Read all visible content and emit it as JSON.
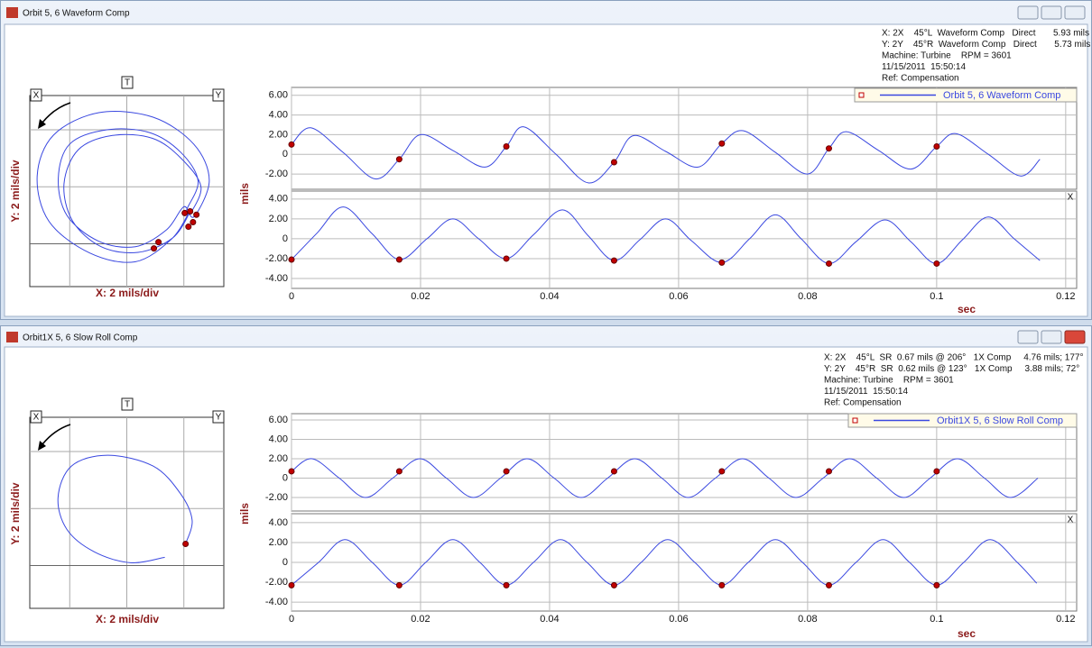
{
  "windows": [
    {
      "title": "Orbit 5, 6 Waveform Comp",
      "info": [
        "X: 2X    45°L  Waveform Comp   Direct       5.93 mils",
        "Y: 2Y    45°R  Waveform Comp   Direct       5.73 mils",
        "Machine: Turbine    RPM = 3601",
        "11/15/2011  15:50:14",
        "Ref: Compensation"
      ],
      "orbit": {
        "type": "orbit",
        "corner_labels": [
          "X",
          "T",
          "Y"
        ],
        "xlabel": "X: 2 mils/div",
        "ylabel": "Y: 2 mils/div",
        "xlim": [
          -3.4,
          3.4
        ],
        "ylim": [
          -3.5,
          3.2
        ],
        "xticks": [
          -2,
          0,
          2
        ],
        "yticks": [
          -2,
          0,
          2
        ],
        "color": "#3a48e0",
        "x": [
          2.19,
          1.56,
          0.29,
          -1.3,
          -2.73,
          -3.14,
          -2.57,
          -0.98,
          0.92,
          2.35,
          2.89,
          2.35,
          2.0,
          1.4,
          0.3,
          -1.0,
          -2.1,
          -2.4,
          -2.0,
          -0.7,
          0.8,
          1.9,
          2.5,
          2.1,
          2.2,
          1.6,
          0.4,
          -0.9,
          -1.9,
          -2.2,
          -1.7,
          -0.5,
          0.9,
          1.9,
          2.6,
          2.2
        ],
        "y": [
          -0.89,
          -1.84,
          -2.63,
          -2.32,
          -1.21,
          0.38,
          1.81,
          2.6,
          2.44,
          1.49,
          0.22,
          -1.05,
          -0.7,
          -1.5,
          -2.1,
          -1.9,
          -1.0,
          0.3,
          1.5,
          2.0,
          1.9,
          1.2,
          0.2,
          -0.8,
          -0.9,
          -1.8,
          -2.3,
          -2.1,
          -1.2,
          0.1,
          1.3,
          1.8,
          1.7,
          1.0,
          0.0,
          -1.0
        ],
        "marker_x": [
          2.03,
          2.22,
          2.44,
          2.32,
          2.16,
          1.11,
          0.95
        ],
        "marker_y": [
          -0.92,
          -0.86,
          -0.98,
          -1.24,
          -1.4,
          -1.94,
          -2.16
        ],
        "marker_color": "#c00000"
      },
      "waveform": {
        "type": "line",
        "xlabel": "sec",
        "ylabel": "mils",
        "legend": "Orbit 5, 6 Waveform Comp",
        "color": "#3a48e0",
        "marker_color": "#c00000",
        "xlim": [
          0,
          0.1217
        ],
        "xticks": [
          0,
          0.02,
          0.04,
          0.06,
          0.08,
          0.1,
          0.12
        ],
        "panels": [
          {
            "ylim": [
              -3.55,
              6.8
            ],
            "yticks": [
              {
                "value": 6,
                "label": "6.00"
              },
              {
                "value": 4,
                "label": "4.00"
              },
              {
                "value": 2,
                "label": "2.00"
              },
              0,
              {
                "value": -2,
                "label": "-2.00"
              }
            ],
            "x": [
              0,
              0.003,
              0.008,
              0.013,
              0.0167,
              0.02,
              0.025,
              0.03,
              0.0333,
              0.036,
              0.041,
              0.046,
              0.05,
              0.053,
              0.058,
              0.063,
              0.0667,
              0.07,
              0.075,
              0.08,
              0.0833,
              0.086,
              0.091,
              0.096,
              0.1,
              0.103,
              0.108,
              0.113,
              0.116
            ],
            "values": [
              1.0,
              2.7,
              0.2,
              -2.5,
              -0.5,
              2.0,
              0.4,
              -1.3,
              0.8,
              2.8,
              0.0,
              -2.9,
              -0.8,
              1.9,
              0.3,
              -1.3,
              1.1,
              2.4,
              0.2,
              -2.0,
              0.6,
              2.3,
              0.4,
              -1.5,
              0.8,
              2.1,
              0.0,
              -2.2,
              -0.5
            ],
            "marker_x": [
              0,
              0.0167,
              0.0333,
              0.05,
              0.0667,
              0.0833,
              0.1
            ],
            "marker_values": [
              1.0,
              -0.5,
              0.8,
              -0.8,
              1.1,
              0.6,
              0.8
            ]
          },
          {
            "tag": "X",
            "ylim": [
              -5,
              4.8
            ],
            "yticks": [
              {
                "value": 4,
                "label": "4.00"
              },
              {
                "value": 2,
                "label": "2.00"
              },
              0,
              {
                "value": -2,
                "label": "-2.00"
              },
              {
                "value": -4,
                "label": "-4.00"
              }
            ],
            "x": [
              0,
              0.004,
              0.008,
              0.0125,
              0.0167,
              0.021,
              0.025,
              0.029,
              0.0333,
              0.0375,
              0.042,
              0.046,
              0.05,
              0.054,
              0.058,
              0.062,
              0.0667,
              0.071,
              0.075,
              0.079,
              0.0833,
              0.0875,
              0.092,
              0.096,
              0.1,
              0.104,
              0.108,
              0.112,
              0.116
            ],
            "values": [
              -2.1,
              0.6,
              3.2,
              0.5,
              -2.1,
              0,
              2.0,
              0,
              -2.0,
              0.4,
              2.9,
              0.3,
              -2.2,
              -0.1,
              2.0,
              -0.2,
              -2.4,
              0,
              2.4,
              0,
              -2.5,
              -0.3,
              1.9,
              -0.3,
              -2.5,
              -0.1,
              2.2,
              0,
              -2.2
            ],
            "marker_x": [
              0,
              0.0167,
              0.0333,
              0.05,
              0.0667,
              0.0833,
              0.1
            ],
            "marker_values": [
              -2.1,
              -2.1,
              -2.0,
              -2.2,
              -2.4,
              -2.5,
              -2.5
            ]
          }
        ]
      }
    },
    {
      "title": "Orbit1X 5, 6 Slow Roll Comp",
      "info": [
        "X: 2X    45°L  SR  0.67 mils @ 206°   1X Comp     4.76 mils; 177°",
        "Y: 2Y    45°R  SR  0.62 mils @ 123°   1X Comp     3.88 mils; 72°",
        "Machine: Turbine    RPM = 3601",
        "11/15/2011  15:50:14",
        "Ref: Compensation"
      ],
      "orbit": {
        "type": "orbit",
        "corner_labels": [
          "X",
          "T",
          "Y"
        ],
        "xlabel": "X: 2 mils/div",
        "ylabel": "Y: 2 mils/div",
        "xlim": [
          -3.4,
          3.4
        ],
        "ylim": [
          -3.5,
          3.2
        ],
        "xticks": [
          -2,
          0,
          2
        ],
        "yticks": [
          -2,
          0,
          2
        ],
        "color": "#3a48e0",
        "x": [
          2.06,
          2.29,
          1.87,
          0.92,
          -0.67,
          -1.94,
          -2.41,
          -2.1,
          -1.14,
          0.13,
          1.33
        ],
        "y": [
          -1.24,
          -0.41,
          0.54,
          1.49,
          1.87,
          1.49,
          0.38,
          -0.73,
          -1.52,
          -1.9,
          -1.71
        ],
        "marker_x": [
          2.06
        ],
        "marker_y": [
          -1.24
        ],
        "marker_color": "#c00000"
      },
      "waveform": {
        "type": "line",
        "xlabel": "sec",
        "ylabel": "mils",
        "legend": "Orbit1X 5, 6 Slow Roll Comp",
        "color": "#3a48e0",
        "marker_color": "#c00000",
        "xlim": [
          0,
          0.1217
        ],
        "xticks": [
          0,
          0.02,
          0.04,
          0.06,
          0.08,
          0.1,
          0.12
        ],
        "panels": [
          {
            "ylim": [
              -3.4,
              6.65
            ],
            "yticks": [
              {
                "value": 6,
                "label": "6.00"
              },
              {
                "value": 4,
                "label": "4.00"
              },
              {
                "value": 2,
                "label": "2.00"
              },
              0,
              {
                "value": -2,
                "label": "-2.00"
              }
            ],
            "x": [
              0,
              0.0032,
              0.0074,
              0.0115,
              0.0157,
              0.0199,
              0.024,
              0.0282,
              0.0324,
              0.0365,
              0.0407,
              0.0449,
              0.049,
              0.0532,
              0.0574,
              0.0615,
              0.0657,
              0.0699,
              0.074,
              0.0782,
              0.0824,
              0.0865,
              0.0907,
              0.0949,
              0.099,
              0.1032,
              0.1074,
              0.1115,
              0.1157
            ],
            "values": [
              0.7,
              2,
              0,
              -2,
              0,
              2,
              0,
              -2,
              0,
              2,
              0,
              -2,
              0,
              2,
              0,
              -2,
              0,
              2,
              0,
              -2,
              0,
              2,
              0,
              -2,
              0,
              2,
              0,
              -2,
              0
            ],
            "marker_x": [
              0,
              0.0167,
              0.0333,
              0.05,
              0.0667,
              0.0833,
              0.1
            ],
            "marker_values": [
              0.7,
              0.7,
              0.7,
              0.7,
              0.7,
              0.7,
              0.7
            ]
          },
          {
            "tag": "X",
            "ylim": [
              -4.9,
              4.9
            ],
            "yticks": [
              {
                "value": 4,
                "label": "4.00"
              },
              {
                "value": 2,
                "label": "2.00"
              },
              0,
              {
                "value": -2,
                "label": "-2.00"
              },
              {
                "value": -4,
                "label": "-4.00"
              }
            ],
            "x": [
              0,
              0.0042,
              0.0083,
              0.0125,
              0.0167,
              0.0208,
              0.025,
              0.0292,
              0.0333,
              0.0375,
              0.0417,
              0.0458,
              0.05,
              0.0542,
              0.0583,
              0.0625,
              0.0667,
              0.0708,
              0.075,
              0.0792,
              0.0833,
              0.0875,
              0.0917,
              0.0958,
              0.1,
              0.1042,
              0.1083,
              0.1125,
              0.1155
            ],
            "values": [
              -2.3,
              0,
              2.3,
              0,
              -2.3,
              0,
              2.3,
              0,
              -2.3,
              0,
              2.3,
              0,
              -2.3,
              0,
              2.3,
              0,
              -2.3,
              0,
              2.3,
              0,
              -2.3,
              0,
              2.3,
              0,
              -2.3,
              0,
              2.3,
              0,
              -2.1
            ],
            "marker_x": [
              0,
              0.0167,
              0.0333,
              0.05,
              0.0667,
              0.0833,
              0.1
            ],
            "marker_values": [
              -2.3,
              -2.3,
              -2.3,
              -2.3,
              -2.3,
              -2.3,
              -2.3
            ]
          }
        ]
      }
    }
  ]
}
